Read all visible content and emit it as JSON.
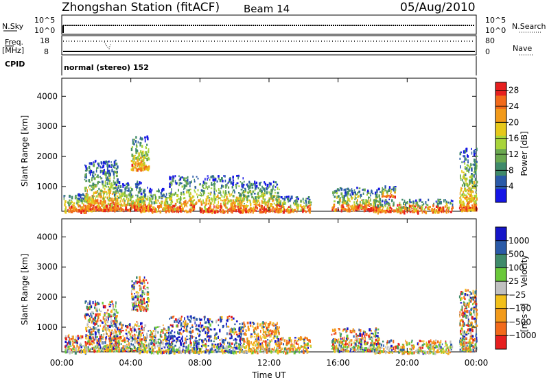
{
  "header": {
    "station": "Zhongshan Station (fitACF)",
    "beam": "Beam 14",
    "date": "05/Aug/2010"
  },
  "top_panels": {
    "nsky_label": "N.Sky",
    "nsky_ticks": [
      "10^5",
      "10^0"
    ],
    "nsearch_label": "N.Search",
    "nsearch_ticks": [
      "10^5",
      "10^0"
    ],
    "freq_label": "Freq.",
    "freq_unit": "[MHz]",
    "freq_ticks": [
      "18",
      "8"
    ],
    "nave_label": "Nave",
    "nave_ticks": [
      "80",
      "0"
    ],
    "cpid_label": "CPID",
    "cpid_value": "normal (stereo) 152"
  },
  "chart_data": [
    {
      "type": "heatmap",
      "title": "",
      "xlabel": "Time UT",
      "ylabel": "Slant Range [km]",
      "x_ticks": [
        "00:00",
        "04:00",
        "08:00",
        "12:00",
        "16:00",
        "20:00",
        "00:00"
      ],
      "y_ticks": [
        "1000",
        "2000",
        "3000",
        "4000"
      ],
      "xlim": [
        0,
        24
      ],
      "ylim": [
        180,
        4600
      ],
      "colorbar": {
        "label": "Power [dB]",
        "ticks": [
          "4",
          "8",
          "12",
          "16",
          "20",
          "24",
          "28"
        ],
        "range": [
          0,
          30
        ],
        "colors": [
          "#1515e6",
          "#2a5aa8",
          "#3f8a6a",
          "#6aa84f",
          "#a8d43a",
          "#e6c81a",
          "#f29a1a",
          "#f26a1a",
          "#e61f1f"
        ]
      },
      "scatter_regions": [
        {
          "x": [
            0.1,
            1.4
          ],
          "y": [
            200,
            800
          ]
        },
        {
          "x": [
            1.3,
            3.2
          ],
          "y": [
            250,
            1900
          ]
        },
        {
          "x": [
            3.0,
            4.6
          ],
          "y": [
            250,
            1200
          ]
        },
        {
          "x": [
            4.0,
            5.0
          ],
          "y": [
            1600,
            2700
          ]
        },
        {
          "x": [
            4.4,
            6.4
          ],
          "y": [
            200,
            1000
          ]
        },
        {
          "x": [
            6.2,
            10.5
          ],
          "y": [
            200,
            1400
          ]
        },
        {
          "x": [
            10.2,
            12.6
          ],
          "y": [
            200,
            1200
          ]
        },
        {
          "x": [
            12.4,
            14.4
          ],
          "y": [
            200,
            700
          ]
        },
        {
          "x": [
            15.6,
            18.4
          ],
          "y": [
            250,
            1000
          ]
        },
        {
          "x": [
            18.0,
            22.6
          ],
          "y": [
            180,
            600
          ]
        },
        {
          "x": [
            18.5,
            19.3
          ],
          "y": [
            700,
            1050
          ]
        },
        {
          "x": [
            23.0,
            24.0
          ],
          "y": [
            250,
            2300
          ]
        }
      ]
    },
    {
      "type": "heatmap",
      "title": "",
      "xlabel": "Time UT",
      "ylabel": "Slant Range [km]",
      "x_ticks": [
        "00:00",
        "04:00",
        "08:00",
        "12:00",
        "16:00",
        "20:00",
        "00:00"
      ],
      "y_ticks": [
        "1000",
        "2000",
        "3000",
        "4000"
      ],
      "xlim": [
        0,
        24
      ],
      "ylim": [
        180,
        4600
      ],
      "colorbar": {
        "label": "Velocity",
        "unit": "[m s⁻¹]",
        "ticks": [
          "1000",
          "500",
          "100",
          "25",
          "−25",
          "−100",
          "−500",
          "−1000"
        ],
        "range": [
          -1200,
          1200
        ],
        "colors": [
          "#e61f1f",
          "#f26a1a",
          "#f29a1a",
          "#f2c01a",
          "#c0c0c0",
          "#6ac83a",
          "#3f8a6a",
          "#2a5aa8",
          "#1515c8"
        ]
      },
      "scatter_regions": [
        {
          "x": [
            0.1,
            1.4
          ],
          "y": [
            200,
            800
          ]
        },
        {
          "x": [
            1.3,
            3.2
          ],
          "y": [
            250,
            1900
          ]
        },
        {
          "x": [
            3.0,
            4.6
          ],
          "y": [
            250,
            1200
          ]
        },
        {
          "x": [
            4.0,
            5.0
          ],
          "y": [
            1600,
            2700
          ]
        },
        {
          "x": [
            4.4,
            6.4
          ],
          "y": [
            200,
            1100
          ]
        },
        {
          "x": [
            6.2,
            10.5
          ],
          "y": [
            200,
            1400
          ]
        },
        {
          "x": [
            10.2,
            12.6
          ],
          "y": [
            200,
            1200
          ]
        },
        {
          "x": [
            12.4,
            14.4
          ],
          "y": [
            200,
            700
          ]
        },
        {
          "x": [
            15.6,
            18.4
          ],
          "y": [
            250,
            1000
          ]
        },
        {
          "x": [
            18.0,
            22.6
          ],
          "y": [
            180,
            600
          ]
        },
        {
          "x": [
            23.0,
            24.0
          ],
          "y": [
            250,
            2300
          ]
        }
      ]
    }
  ]
}
